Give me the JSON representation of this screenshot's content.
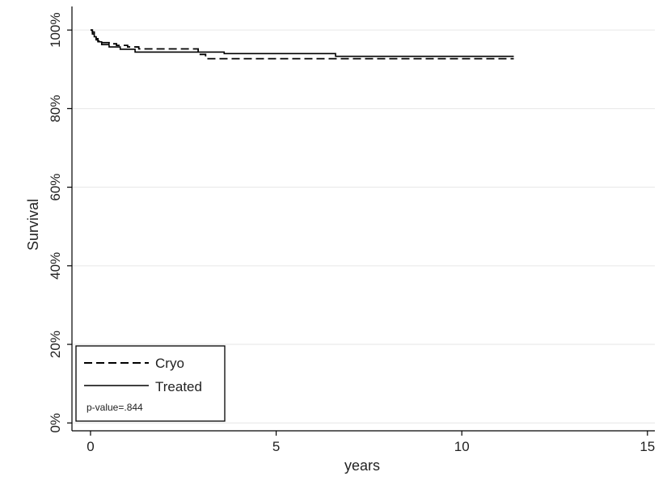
{
  "chart_data": {
    "type": "line",
    "title": "",
    "xlabel": "years",
    "ylabel": "Survival",
    "xlim": [
      -0.5,
      15.2
    ],
    "ylim": [
      -0.02,
      1.06
    ],
    "x_ticks": [
      0,
      5,
      10,
      15
    ],
    "x_tick_labels": [
      "0",
      "5",
      "10",
      "15"
    ],
    "y_ticks": [
      0,
      0.2,
      0.4,
      0.6,
      0.8,
      1.0
    ],
    "y_tick_labels": [
      "0%",
      "20%",
      "40%",
      "60%",
      "80%",
      "100%"
    ],
    "grid": true,
    "legend_position": "bottom-left",
    "series": [
      {
        "name": "Cryo",
        "style": "dashed",
        "color": "#000000",
        "x": [
          0.0,
          0.05,
          0.1,
          0.15,
          0.2,
          0.3,
          0.5,
          0.7,
          1.0,
          1.3,
          2.9,
          3.1,
          6.6,
          11.4
        ],
        "y": [
          1.0,
          0.995,
          0.985,
          0.978,
          0.972,
          0.968,
          0.965,
          0.961,
          0.957,
          0.952,
          0.938,
          0.927,
          0.927,
          0.927
        ]
      },
      {
        "name": "Treated",
        "style": "solid",
        "color": "#000000",
        "x": [
          0.0,
          0.05,
          0.1,
          0.15,
          0.2,
          0.3,
          0.5,
          0.8,
          1.2,
          3.6,
          6.6,
          11.4
        ],
        "y": [
          1.0,
          0.99,
          0.983,
          0.975,
          0.97,
          0.963,
          0.957,
          0.951,
          0.944,
          0.94,
          0.933,
          0.933
        ]
      }
    ],
    "annotation": "p-value=.844"
  }
}
